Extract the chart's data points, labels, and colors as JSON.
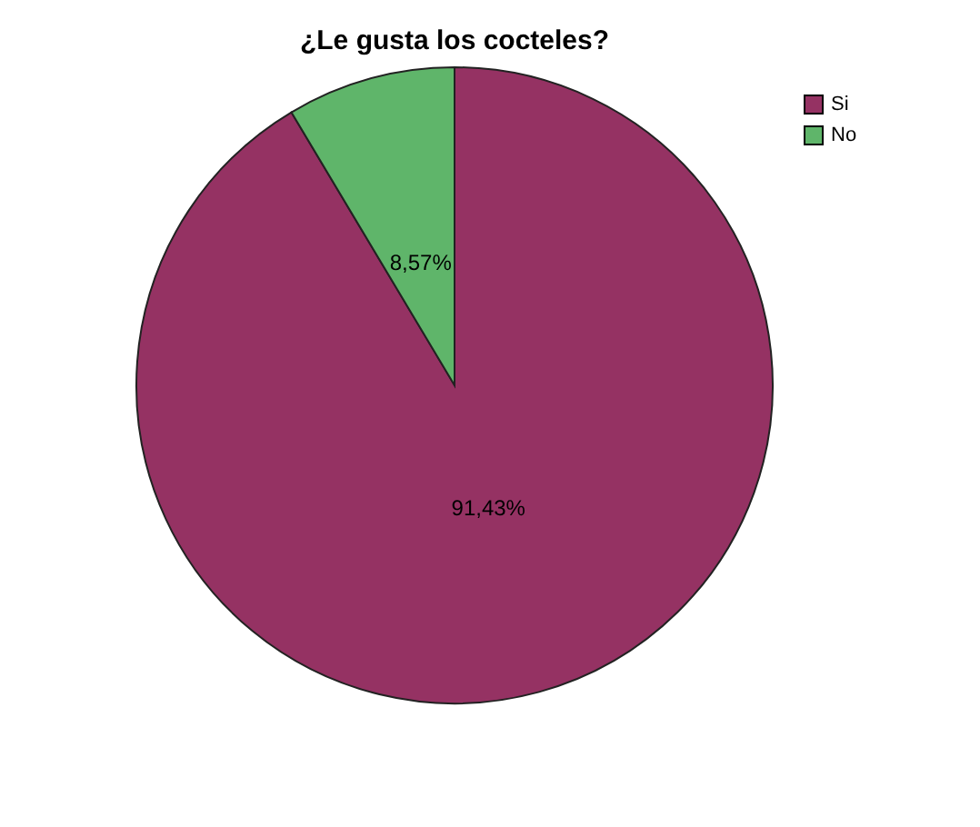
{
  "chart_data": {
    "type": "pie",
    "title": "¿Le gusta los cocteles?",
    "categories": [
      "Si",
      "No"
    ],
    "values": [
      91.43,
      8.57
    ],
    "colors": [
      "#953263",
      "#5fb56a"
    ],
    "value_labels": [
      "91,43%",
      "8,57%"
    ],
    "legend": "top right"
  }
}
